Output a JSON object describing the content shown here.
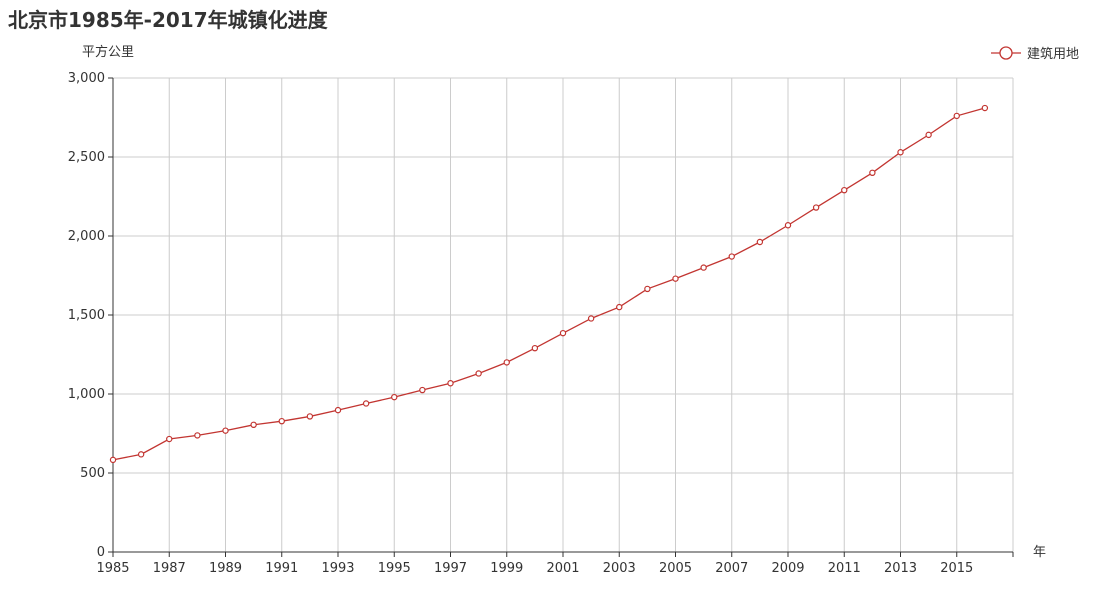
{
  "colors": {
    "series": "#c23531",
    "grid": "#cccccc",
    "axis": "#333333"
  },
  "chart_data": {
    "type": "line",
    "title": "北京市1985年-2017年城镇化进度",
    "xlabel": "年",
    "ylabel": "平方公里",
    "x_ticks": [
      "1985",
      "1987",
      "1989",
      "1991",
      "1993",
      "1995",
      "1997",
      "1999",
      "2001",
      "2003",
      "2005",
      "2007",
      "2009",
      "2011",
      "2013",
      "2015"
    ],
    "y_ticks": [
      "0",
      "500",
      "1,000",
      "1,500",
      "2,000",
      "2,500",
      "3,000"
    ],
    "ylim": [
      0,
      3000
    ],
    "xlim": [
      1985,
      2017
    ],
    "grid": true,
    "legend_position": "top-right",
    "series": [
      {
        "name": "建筑用地",
        "x": [
          1985,
          1986,
          1987,
          1988,
          1989,
          1990,
          1991,
          1992,
          1993,
          1994,
          1995,
          1996,
          1997,
          1998,
          1999,
          2000,
          2001,
          2002,
          2003,
          2004,
          2005,
          2006,
          2007,
          2008,
          2009,
          2010,
          2011,
          2012,
          2013,
          2014,
          2015,
          2016
        ],
        "values": [
          583,
          618,
          715,
          738,
          768,
          805,
          828,
          858,
          898,
          940,
          980,
          1025,
          1068,
          1130,
          1200,
          1290,
          1385,
          1478,
          1550,
          1665,
          1730,
          1800,
          1870,
          1962,
          2068,
          2180,
          2290,
          2400,
          2530,
          2640,
          2760,
          2810
        ]
      }
    ]
  }
}
